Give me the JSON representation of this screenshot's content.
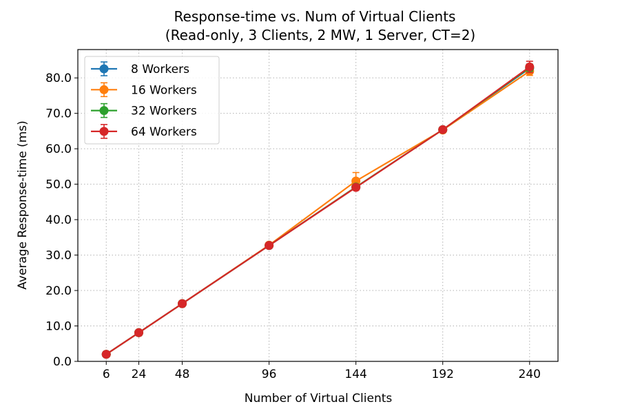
{
  "chart_data": {
    "type": "line",
    "title_line1": "Response-time vs. Num of Virtual Clients",
    "title_line2": "(Read-only, 3 Clients, 2 MW, 1 Server, CT=2)",
    "xlabel": "Number of Virtual Clients",
    "ylabel": "Average Response-time (ms)",
    "x": [
      6,
      24,
      48,
      96,
      144,
      192,
      240
    ],
    "x_ticks": [
      "6",
      "24",
      "48",
      "96",
      "144",
      "192",
      "240"
    ],
    "xlim": [
      -9.7,
      255.7
    ],
    "ylim": [
      0,
      88
    ],
    "y_ticks": [
      0,
      10,
      20,
      30,
      40,
      50,
      60,
      70,
      80
    ],
    "y_tick_labels": [
      "0.0",
      "10.0",
      "20.0",
      "30.0",
      "40.0",
      "50.0",
      "60.0",
      "70.0",
      "80.0"
    ],
    "grid": true,
    "legend_position": "top-left",
    "series": [
      {
        "name": "8 Workers",
        "color": "#1f77b4",
        "values": [
          2.0,
          8.1,
          16.3,
          32.7,
          49.2,
          65.4,
          82.7
        ],
        "errors": [
          0.2,
          0.3,
          0.4,
          0.5,
          0.7,
          0.5,
          1.0
        ]
      },
      {
        "name": "16 Workers",
        "color": "#ff7f0e",
        "values": [
          2.0,
          8.1,
          16.3,
          32.8,
          50.9,
          65.3,
          81.9
        ],
        "errors": [
          0.2,
          0.3,
          0.4,
          0.5,
          2.4,
          0.5,
          1.2
        ]
      },
      {
        "name": "32 Workers",
        "color": "#2ca02c",
        "values": [
          2.0,
          8.1,
          16.3,
          32.7,
          49.2,
          65.4,
          82.9
        ],
        "errors": [
          0.2,
          0.3,
          0.4,
          0.5,
          0.7,
          0.5,
          1.0
        ]
      },
      {
        "name": "64 Workers",
        "color": "#d62728",
        "values": [
          2.0,
          8.1,
          16.3,
          32.7,
          49.1,
          65.4,
          83.1
        ],
        "errors": [
          0.2,
          0.3,
          0.4,
          0.5,
          0.7,
          0.5,
          1.6
        ]
      }
    ]
  }
}
